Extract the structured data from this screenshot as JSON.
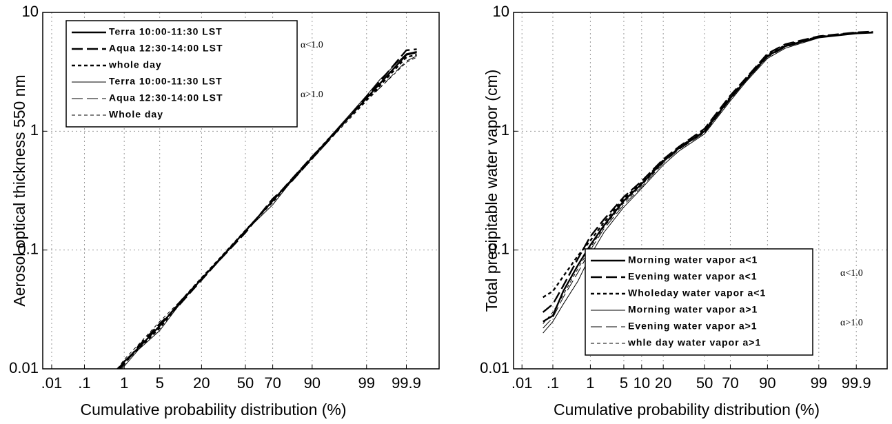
{
  "chart_data": [
    {
      "type": "line",
      "x_scale": "probability",
      "y_scale": "log",
      "grid": true,
      "legend": "upper left",
      "xlabel": "Cumulative probability   distribution (%)",
      "ylabel": "Aerosol optical thickness 550 nm",
      "xlim": [
        0.005,
        99.99
      ],
      "ylim": [
        0.01,
        10
      ],
      "xticks": [
        {
          "value": 0.01,
          "label": ".01"
        },
        {
          "value": 0.1,
          "label": ".1"
        },
        1,
        5,
        20,
        50,
        70,
        90,
        99,
        99.9
      ],
      "yticks": [
        0.01,
        0.1,
        1,
        10
      ],
      "annotations": [
        "α<1.0",
        "α>1.0"
      ],
      "x": [
        0.7,
        1,
        2,
        5,
        10,
        20,
        30,
        50,
        70,
        80,
        90,
        95,
        99,
        99.5,
        99.9,
        99.95
      ],
      "series": [
        {
          "name": "Terra    10:00-11:30    LST",
          "color": "#000000",
          "dash": "solid",
          "width": 2.4,
          "values": [
            0.0098,
            0.0115,
            0.015,
            0.023,
            0.035,
            0.057,
            0.081,
            0.145,
            0.26,
            0.37,
            0.6,
            0.9,
            1.9,
            2.5,
            4.4,
            4.6
          ]
        },
        {
          "name": "Aqua   12:30-14:00    LST",
          "color": "#000000",
          "dash": "long",
          "width": 2.4,
          "values": [
            0.0095,
            0.011,
            0.0155,
            0.024,
            0.034,
            0.056,
            0.08,
            0.14,
            0.27,
            0.36,
            0.59,
            0.88,
            1.95,
            2.6,
            4.8,
            4.9
          ]
        },
        {
          "name": "whole   day",
          "color": "#000000",
          "dash": "short",
          "width": 2.4,
          "values": [
            0.01,
            0.0112,
            0.0148,
            0.022,
            0.035,
            0.058,
            0.082,
            0.146,
            0.255,
            0.37,
            0.61,
            0.91,
            1.85,
            2.4,
            4.2,
            4.4
          ]
        },
        {
          "name": "Terra    10:00-11:30    LST",
          "color": "#000000",
          "dash": "solid",
          "width": 1,
          "values": [
            0.0093,
            0.0105,
            0.0145,
            0.021,
            0.034,
            0.057,
            0.079,
            0.144,
            0.24,
            0.36,
            0.6,
            0.92,
            2.0,
            2.7,
            4.5,
            4.7
          ]
        },
        {
          "name": "Aqua   12:30-14:00    LST",
          "color": "#000000",
          "dash": "long",
          "width": 1,
          "values": [
            0.0096,
            0.0108,
            0.0152,
            0.023,
            0.036,
            0.058,
            0.08,
            0.146,
            0.265,
            0.38,
            0.62,
            0.9,
            1.9,
            2.3,
            3.9,
            4.3
          ]
        },
        {
          "name": "Whole   day",
          "color": "#000000",
          "dash": "short",
          "width": 1,
          "values": [
            0.01,
            0.012,
            0.016,
            0.025,
            0.036,
            0.059,
            0.083,
            0.147,
            0.25,
            0.36,
            0.58,
            0.87,
            1.8,
            2.3,
            3.8,
            4.2
          ]
        }
      ]
    },
    {
      "type": "line",
      "x_scale": "probability",
      "y_scale": "log",
      "grid": true,
      "legend": "lower right",
      "xlabel": "Cumulative probability   distribution (%)",
      "ylabel": "Total precipitable water vapor (cm)",
      "xlim": [
        0.005,
        99.99
      ],
      "ylim": [
        0.01,
        10
      ],
      "xticks": [
        {
          "value": 0.01,
          "label": ".01"
        },
        {
          "value": 0.1,
          "label": ".1"
        },
        1,
        5,
        10,
        20,
        50,
        70,
        90,
        99,
        99.9
      ],
      "yticks": [
        0.01,
        0.1,
        1,
        10
      ],
      "annotations": [
        "α<1.0",
        "α>1.0"
      ],
      "x": [
        0.05,
        0.1,
        0.2,
        0.5,
        1,
        2,
        5,
        10,
        20,
        30,
        50,
        70,
        80,
        90,
        95,
        99,
        99.9,
        99.97
      ],
      "series": [
        {
          "name": "Morning   water   vapor   a<1",
          "color": "#000000",
          "dash": "solid",
          "width": 2.4,
          "values": [
            0.025,
            0.028,
            0.045,
            0.075,
            0.11,
            0.16,
            0.26,
            0.36,
            0.56,
            0.72,
            1.0,
            1.9,
            2.7,
            4.3,
            5.2,
            6.2,
            6.7,
            6.8
          ]
        },
        {
          "name": "Evening   water   vapor   a<1",
          "color": "#000000",
          "dash": "long",
          "width": 2.4,
          "values": [
            0.03,
            0.035,
            0.05,
            0.085,
            0.13,
            0.18,
            0.28,
            0.38,
            0.58,
            0.74,
            1.05,
            2.0,
            2.8,
            4.5,
            5.4,
            6.3,
            6.8,
            6.9
          ]
        },
        {
          "name": "Wholeday   water   vapor   a<1",
          "color": "#000000",
          "dash": "short",
          "width": 2.4,
          "values": [
            0.04,
            0.045,
            0.06,
            0.09,
            0.12,
            0.17,
            0.27,
            0.37,
            0.57,
            0.73,
            1.02,
            1.95,
            2.75,
            4.4,
            5.3,
            6.25,
            6.75,
            6.85
          ]
        },
        {
          "name": "Morning   water   vapor  a>1",
          "color": "#000000",
          "dash": "solid",
          "width": 1,
          "values": [
            0.02,
            0.025,
            0.035,
            0.055,
            0.09,
            0.14,
            0.23,
            0.33,
            0.52,
            0.68,
            0.95,
            1.8,
            2.6,
            4.1,
            5.0,
            6.1,
            6.6,
            6.7
          ]
        },
        {
          "name": "Evening   water   vapor   a>1",
          "color": "#000000",
          "dash": "long",
          "width": 1,
          "values": [
            0.022,
            0.027,
            0.04,
            0.065,
            0.1,
            0.15,
            0.24,
            0.34,
            0.54,
            0.7,
            0.97,
            1.85,
            2.65,
            4.2,
            5.1,
            6.15,
            6.65,
            6.75
          ]
        },
        {
          "name": "whle   day   water   vapor   a>1",
          "color": "#000000",
          "dash": "short",
          "width": 1,
          "values": [
            0.024,
            0.03,
            0.042,
            0.07,
            0.105,
            0.155,
            0.25,
            0.35,
            0.55,
            0.71,
            0.98,
            1.88,
            2.7,
            4.25,
            5.15,
            6.2,
            6.7,
            6.8
          ]
        }
      ]
    }
  ]
}
